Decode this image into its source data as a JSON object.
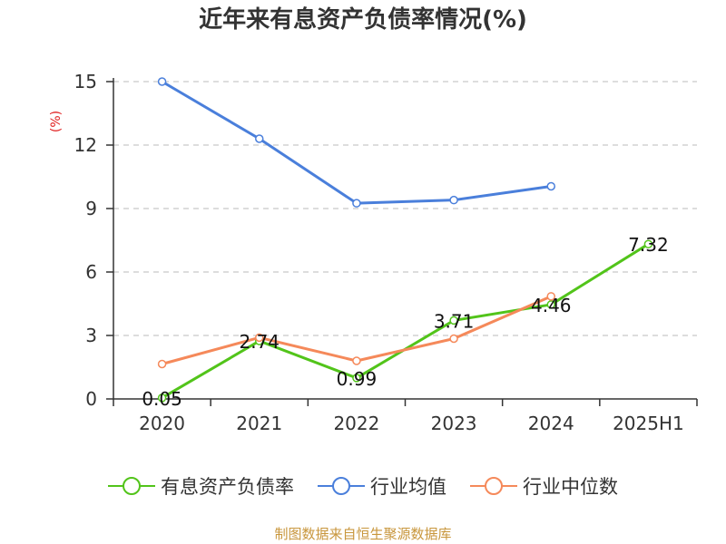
{
  "chart_data": {
    "type": "line",
    "title": "近年来有息资产负债率情况(%)",
    "ylabel": "(%)",
    "xlabel": "",
    "categories": [
      "2020",
      "2021",
      "2022",
      "2023",
      "2024",
      "2025H1"
    ],
    "ylim": [
      0,
      15
    ],
    "yticks": [
      0,
      3,
      6,
      9,
      12,
      15
    ],
    "grid": true,
    "legend_position": "bottom",
    "series": [
      {
        "name": "有息资产负债率",
        "color": "#52c41a",
        "values": [
          0.05,
          2.74,
          0.99,
          3.71,
          4.46,
          7.32
        ],
        "labels": [
          "0.05",
          "2.74",
          "0.99",
          "3.71",
          "4.46",
          "7.32"
        ],
        "show_labels": true
      },
      {
        "name": "行业均值",
        "color": "#4a7fdb",
        "values": [
          15.0,
          12.3,
          9.25,
          9.4,
          10.05,
          null
        ],
        "show_labels": false
      },
      {
        "name": "行业中位数",
        "color": "#f5895a",
        "values": [
          1.65,
          2.9,
          1.8,
          2.85,
          4.85,
          null
        ],
        "show_labels": false
      }
    ]
  },
  "source_text": "制图数据来自恒生聚源数据库"
}
